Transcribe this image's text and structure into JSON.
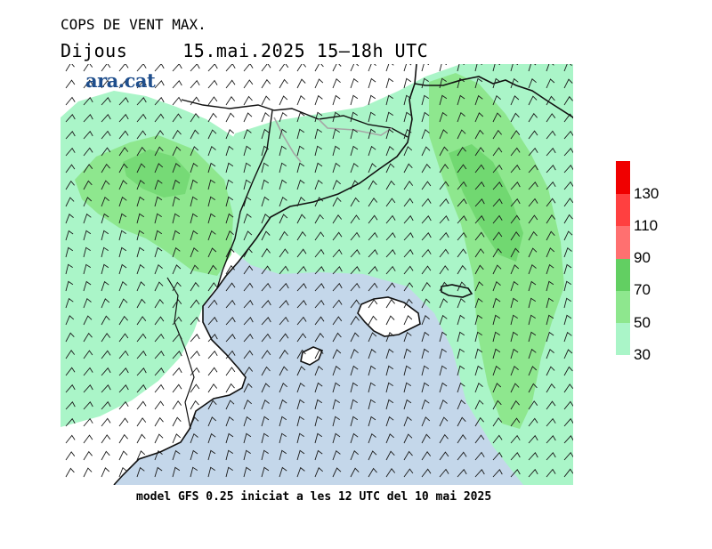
{
  "title": "COPS DE VENT MAX.",
  "day": "Dijous",
  "valid": "15.mai.2025 15–18h UTC",
  "logo": "ara.cat",
  "footer": "model GFS 0.25 iniciat a les 12 UTC del 10 mai 2025",
  "legend": {
    "bins": [
      {
        "from": 30,
        "to": 50,
        "color": "#aaf5c8"
      },
      {
        "from": 50,
        "to": 70,
        "color": "#8ee78e"
      },
      {
        "from": 70,
        "to": 90,
        "color": "#62cf62"
      },
      {
        "from": 90,
        "to": 110,
        "color": "#ff7070"
      },
      {
        "from": 110,
        "to": 130,
        "color": "#ff4040"
      },
      {
        "from": 130,
        "to": 150,
        "color": "#f00000"
      }
    ],
    "labels": [
      "30",
      "50",
      "70",
      "90",
      "110",
      "130"
    ]
  },
  "colors": {
    "sea": "#c4d7ea",
    "land": "#ffffff",
    "coast": "#111111",
    "border": "#a6a6a6",
    "barb": "#1a1a1a"
  }
}
